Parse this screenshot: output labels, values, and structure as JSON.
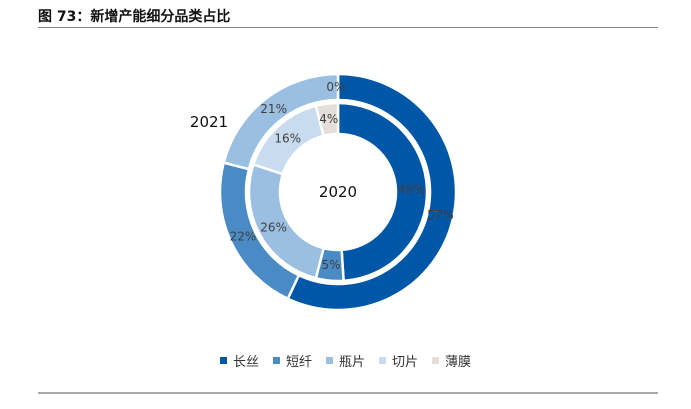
{
  "title": "图 73：新增产能细分品类占比",
  "chart_data": {
    "type": "pie",
    "subtype": "double-donut",
    "title": "图 73：新增产能细分品类占比",
    "categories": [
      "长丝",
      "短纤",
      "瓶片",
      "切片",
      "薄膜"
    ],
    "colors": [
      "#0057A8",
      "#4A8BC6",
      "#9ABFE0",
      "#C9DCEF",
      "#E3DED9"
    ],
    "series": [
      {
        "name": "2021",
        "ring": "outer",
        "values": [
          57,
          22,
          21,
          0,
          0
        ],
        "labels": [
          "57%",
          "22%",
          "21%",
          "",
          "0%"
        ]
      },
      {
        "name": "2020",
        "ring": "inner",
        "values": [
          49,
          5,
          26,
          16,
          4
        ],
        "labels": [
          "49%",
          "5%",
          "26%",
          "16%",
          "4%"
        ]
      }
    ],
    "legend_position": "bottom"
  }
}
